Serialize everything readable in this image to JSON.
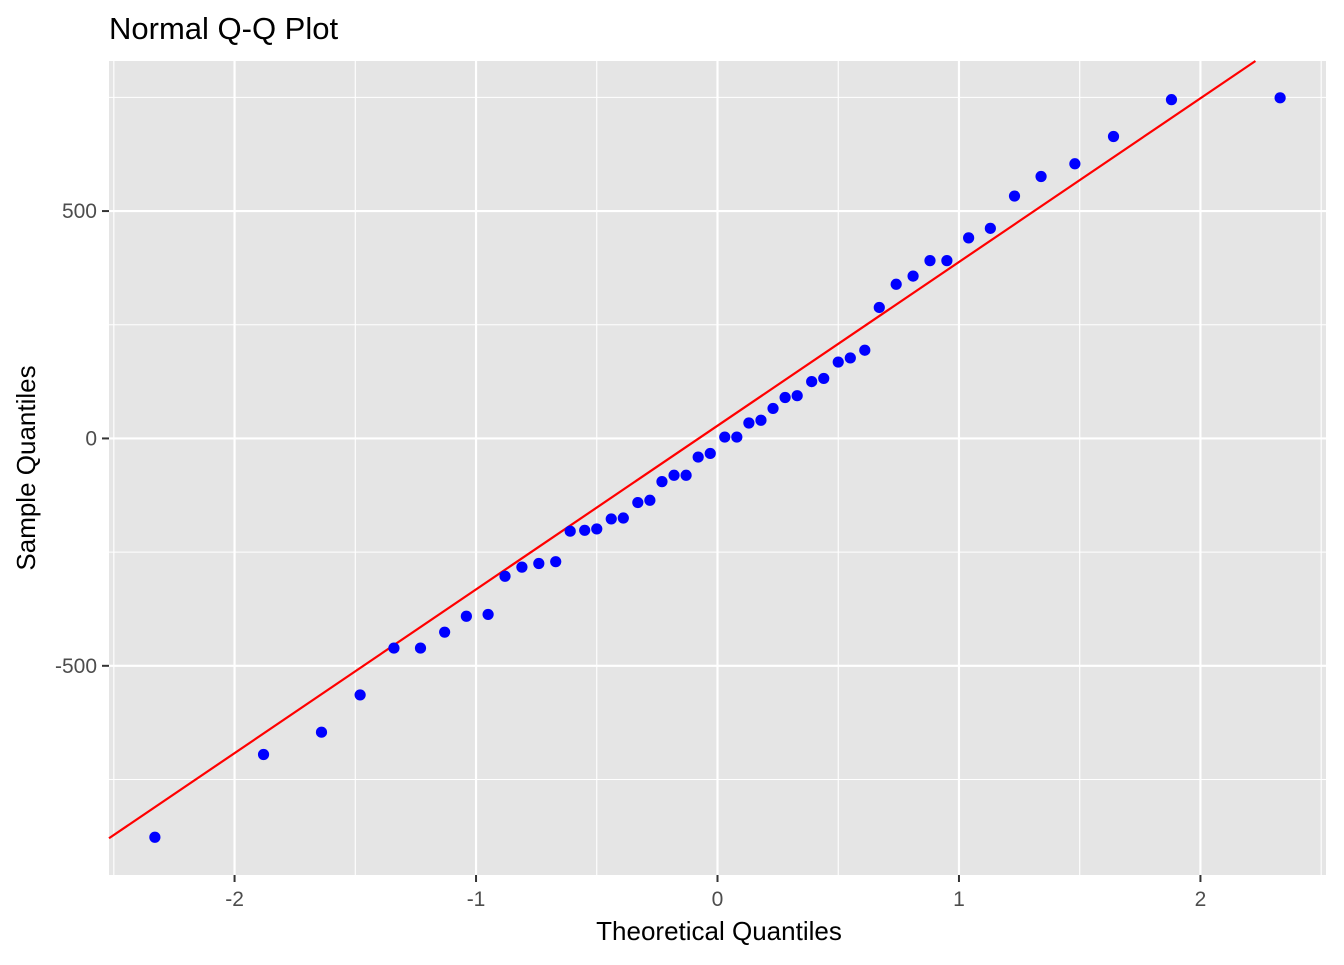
{
  "chart_data": {
    "type": "scatter",
    "title": "Normal Q-Q Plot",
    "xlabel": "Theoretical Quantiles",
    "ylabel": "Sample Quantiles",
    "xlim": [
      -2.52,
      2.52
    ],
    "ylim": [
      -960,
      830
    ],
    "x_ticks": [
      -2,
      -1,
      0,
      1,
      2
    ],
    "x_tick_labels": [
      "-2",
      "-1",
      "0",
      "1",
      "2"
    ],
    "y_ticks": [
      -500,
      0,
      500
    ],
    "y_tick_labels": [
      "-500",
      "0",
      "500"
    ],
    "grid": true,
    "point_color": "#0000ff",
    "line_color": "#ff0000",
    "panel_background": "#e5e5e5",
    "reference_line": {
      "intercept": 28,
      "slope": 360
    },
    "series": [
      {
        "x": [
          -2.33,
          -1.88,
          -1.64,
          -1.48,
          -1.34,
          -1.23,
          -1.13,
          -1.04,
          -0.95,
          -0.88,
          -0.81,
          -0.74,
          -0.67,
          -0.61,
          -0.55,
          -0.5,
          -0.44,
          -0.39,
          -0.33,
          -0.28,
          -0.23,
          -0.18,
          -0.13,
          -0.08,
          -0.03,
          0.03,
          0.08,
          0.13,
          0.18,
          0.23,
          0.28,
          0.33,
          0.39,
          0.44,
          0.5,
          0.55,
          0.61,
          0.67,
          0.74,
          0.81,
          0.88,
          0.95,
          1.04,
          1.13,
          1.23,
          1.34,
          1.48,
          1.64,
          1.88,
          2.33
        ],
        "y": [
          -877,
          -695,
          -646,
          -564,
          -461,
          -461,
          -426,
          -391,
          -387,
          -303,
          -283,
          -275,
          -271,
          -204,
          -202,
          -199,
          -177,
          -175,
          -141,
          -136,
          -95,
          -81,
          -81,
          -41,
          -33,
          3,
          3,
          34,
          40,
          66,
          90,
          94,
          125,
          132,
          168,
          177,
          194,
          288,
          339,
          357,
          391,
          391,
          441,
          462,
          533,
          576,
          604,
          664,
          745,
          749
        ]
      }
    ]
  }
}
